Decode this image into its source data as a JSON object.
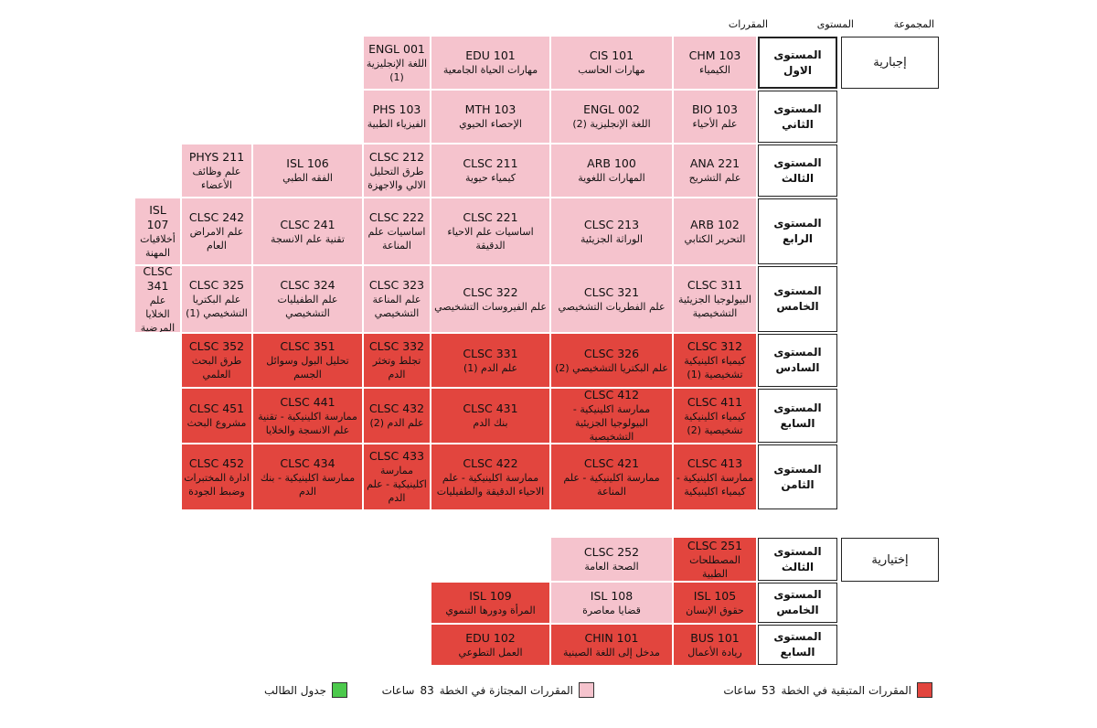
{
  "headers": {
    "group": "المجموعة",
    "level": "المستوى",
    "courses": "المقررات"
  },
  "colors": {
    "passed": "#f5c3cd",
    "remaining": "#e2453e",
    "schedule": "#4cc94c"
  },
  "groups": [
    {
      "name": "إجبارية",
      "levels": [
        {
          "level": "المستوى الاول",
          "courses": [
            {
              "code": "CHM 103",
              "name": "الكيمياء",
              "status": "passed"
            },
            {
              "code": "CIS 101",
              "name": "مهارات الحاسب",
              "status": "passed"
            },
            {
              "code": "EDU 101",
              "name": "مهارات الحياة الجامعية",
              "status": "passed"
            },
            {
              "code": "ENGL 001",
              "name": "اللغة الإنجليزية (1)",
              "status": "passed"
            }
          ]
        },
        {
          "level": "المستوى الثاني",
          "courses": [
            {
              "code": "BIO 103",
              "name": "علم الأحياء",
              "status": "passed"
            },
            {
              "code": "ENGL 002",
              "name": "اللغة الإنجليزية (2)",
              "status": "passed"
            },
            {
              "code": "MTH 103",
              "name": "الإحصاء الحيوي",
              "status": "passed"
            },
            {
              "code": "PHS 103",
              "name": "الفيزياء الطبية",
              "status": "passed"
            }
          ]
        },
        {
          "level": "المستوى الثالث",
          "courses": [
            {
              "code": "ANA 221",
              "name": "علم التشريح",
              "status": "passed"
            },
            {
              "code": "ARB 100",
              "name": "المهارات اللغوية",
              "status": "passed"
            },
            {
              "code": "CLSC 211",
              "name": "كيمياء حيوية",
              "status": "passed"
            },
            {
              "code": "CLSC 212",
              "name": "طرق التحليل الالي والاجهزة",
              "status": "passed"
            },
            {
              "code": "ISL 106",
              "name": "الفقه الطبي",
              "status": "passed"
            },
            {
              "code": "PHYS 211",
              "name": "علم وظائف الأعضاء",
              "status": "passed"
            }
          ]
        },
        {
          "level": "المستوى الرابع",
          "courses": [
            {
              "code": "ARB 102",
              "name": "التحرير الكتابي",
              "status": "passed"
            },
            {
              "code": "CLSC 213",
              "name": "الوراثة الجزيئية",
              "status": "passed"
            },
            {
              "code": "CLSC 221",
              "name": "اساسيات علم الاحياء الدقيقة",
              "status": "passed"
            },
            {
              "code": "CLSC 222",
              "name": "اساسيات علم المناعة",
              "status": "passed"
            },
            {
              "code": "CLSC 241",
              "name": "تقنية علم الانسجة",
              "status": "passed"
            },
            {
              "code": "CLSC 242",
              "name": "علم الامراض العام",
              "status": "passed"
            },
            {
              "code": "ISL 107",
              "name": "أخلاقيات المهنة",
              "status": "passed"
            }
          ]
        },
        {
          "level": "المستوى الخامس",
          "courses": [
            {
              "code": "CLSC 311",
              "name": "البيولوجيا الجزيئية التشخيصية",
              "status": "passed"
            },
            {
              "code": "CLSC 321",
              "name": "علم الفطريات التشخيصي",
              "status": "passed"
            },
            {
              "code": "CLSC 322",
              "name": "علم الفيروسات التشخيصي",
              "status": "passed"
            },
            {
              "code": "CLSC 323",
              "name": "علم المناعة التشخيصي",
              "status": "passed"
            },
            {
              "code": "CLSC 324",
              "name": "علم الطفيليات التشخيصي",
              "status": "passed"
            },
            {
              "code": "CLSC 325",
              "name": "علم البكتريا التشخيصي (1)",
              "status": "passed"
            },
            {
              "code": "CLSC 341",
              "name": "علم الخلايا المرضية",
              "status": "passed"
            }
          ]
        },
        {
          "level": "المستوى السادس",
          "courses": [
            {
              "code": "CLSC 312",
              "name": "كيمياء اكلينيكية تشخيصية (1)",
              "status": "remaining"
            },
            {
              "code": "CLSC 326",
              "name": "علم البكتريا التشخيصي (2)",
              "status": "remaining"
            },
            {
              "code": "CLSC 331",
              "name": "علم الدم (1)",
              "status": "remaining"
            },
            {
              "code": "CLSC 332",
              "name": "تجلط وتخثر الدم",
              "status": "remaining"
            },
            {
              "code": "CLSC 351",
              "name": "تحليل البول وسوائل الجسم",
              "status": "remaining"
            },
            {
              "code": "CLSC 352",
              "name": "طرق البحث العلمي",
              "status": "remaining"
            }
          ]
        },
        {
          "level": "المستوى السابع",
          "courses": [
            {
              "code": "CLSC 411",
              "name": "كيمياء اكلينيكية تشخيصية (2)",
              "status": "remaining"
            },
            {
              "code": "CLSC 412",
              "name": "ممارسة اكلينيكية - البيولوجيا الجزيئية التشخيصية",
              "status": "remaining"
            },
            {
              "code": "CLSC 431",
              "name": "بنك الدم",
              "status": "remaining"
            },
            {
              "code": "CLSC 432",
              "name": "علم الدم (2)",
              "status": "remaining"
            },
            {
              "code": "CLSC 441",
              "name": "ممارسة اكلينيكية - تقنية علم الانسجة والخلايا",
              "status": "remaining"
            },
            {
              "code": "CLSC 451",
              "name": "مشروع البحث",
              "status": "remaining"
            }
          ]
        },
        {
          "level": "المستوى الثامن",
          "courses": [
            {
              "code": "CLSC 413",
              "name": "ممارسة اكلينيكية - كيمياء اكلينيكية",
              "status": "remaining"
            },
            {
              "code": "CLSC 421",
              "name": "ممارسة اكلينيكية - علم المناعة",
              "status": "remaining"
            },
            {
              "code": "CLSC 422",
              "name": "ممارسة اكلينيكية - علم الاحياء الدقيقة والطفيليات",
              "status": "remaining"
            },
            {
              "code": "CLSC 433",
              "name": "ممارسة اكلينيكية - علم الدم",
              "status": "remaining"
            },
            {
              "code": "CLSC 434",
              "name": "ممارسة اكلينيكية - بنك الدم",
              "status": "remaining"
            },
            {
              "code": "CLSC 452",
              "name": "ادارة المختبرات وضبط الجودة",
              "status": "remaining"
            }
          ]
        }
      ]
    },
    {
      "name": "إختيارية",
      "levels": [
        {
          "level": "المستوى الثالث",
          "courses": [
            {
              "code": "CLSC 251",
              "name": "المصطلحات الطبية",
              "status": "remaining"
            },
            {
              "code": "CLSC 252",
              "name": "الصحة العامة",
              "status": "passed"
            }
          ]
        },
        {
          "level": "المستوى الخامس",
          "courses": [
            {
              "code": "ISL 105",
              "name": "حقوق الإنسان",
              "status": "remaining"
            },
            {
              "code": "ISL 108",
              "name": "قضايا معاصرة",
              "status": "passed"
            },
            {
              "code": "ISL 109",
              "name": "المرأة ودورها التنموي",
              "status": "remaining"
            }
          ]
        },
        {
          "level": "المستوى السابع",
          "courses": [
            {
              "code": "BUS 101",
              "name": "ريادة الأعمال",
              "status": "remaining"
            },
            {
              "code": "CHIN 101",
              "name": "مدخل إلى اللغة الصينية",
              "status": "remaining"
            },
            {
              "code": "EDU 102",
              "name": "العمل التطوعي",
              "status": "remaining"
            }
          ]
        }
      ]
    }
  ],
  "legend": [
    {
      "label": "المقررات المتبقية في الخطة",
      "hours": 53,
      "unit": "ساعات",
      "status": "remaining"
    },
    {
      "label": "المقررات المجتازة في الخطة",
      "hours": 83,
      "unit": "ساعات",
      "status": "passed"
    },
    {
      "label": "جدول الطالب",
      "status": "schedule"
    }
  ]
}
